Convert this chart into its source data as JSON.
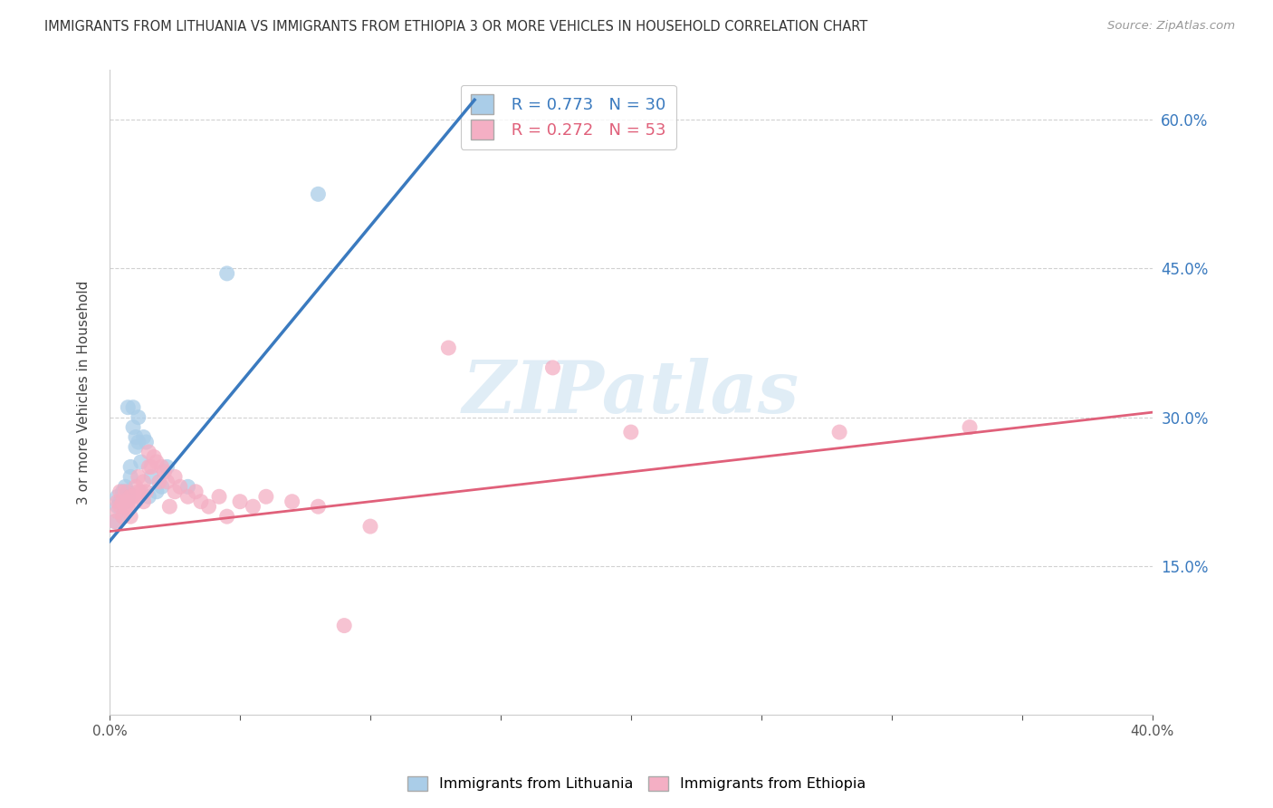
{
  "title": "IMMIGRANTS FROM LITHUANIA VS IMMIGRANTS FROM ETHIOPIA 3 OR MORE VEHICLES IN HOUSEHOLD CORRELATION CHART",
  "source": "Source: ZipAtlas.com",
  "ylabel": "3 or more Vehicles in Household",
  "xlim": [
    0.0,
    0.4
  ],
  "ylim": [
    0.0,
    0.65
  ],
  "xticks": [
    0.0,
    0.05,
    0.1,
    0.15,
    0.2,
    0.25,
    0.3,
    0.35,
    0.4
  ],
  "yticks_right": [
    0.15,
    0.3,
    0.45,
    0.6
  ],
  "ytick_labels_right": [
    "15.0%",
    "30.0%",
    "45.0%",
    "60.0%"
  ],
  "series1_label": "Immigrants from Lithuania",
  "series1_R": 0.773,
  "series1_N": 30,
  "series1_color": "#aacde8",
  "series1_line_color": "#3a7abf",
  "series2_label": "Immigrants from Ethiopia",
  "series2_R": 0.272,
  "series2_N": 53,
  "series2_color": "#f4afc4",
  "series2_line_color": "#e0607a",
  "watermark_text": "ZIPatlas",
  "background_color": "#ffffff",
  "grid_color": "#cccccc",
  "title_color": "#444444",
  "series1_x": [
    0.002,
    0.003,
    0.003,
    0.004,
    0.005,
    0.005,
    0.006,
    0.006,
    0.007,
    0.007,
    0.007,
    0.008,
    0.008,
    0.009,
    0.009,
    0.01,
    0.01,
    0.011,
    0.011,
    0.012,
    0.013,
    0.014,
    0.015,
    0.016,
    0.018,
    0.02,
    0.022,
    0.03,
    0.045,
    0.08
  ],
  "series1_y": [
    0.195,
    0.21,
    0.22,
    0.215,
    0.2,
    0.225,
    0.215,
    0.23,
    0.22,
    0.225,
    0.31,
    0.24,
    0.25,
    0.29,
    0.31,
    0.27,
    0.28,
    0.275,
    0.3,
    0.255,
    0.28,
    0.275,
    0.22,
    0.24,
    0.225,
    0.23,
    0.25,
    0.23,
    0.445,
    0.525
  ],
  "series2_x": [
    0.002,
    0.003,
    0.003,
    0.004,
    0.004,
    0.005,
    0.005,
    0.006,
    0.006,
    0.007,
    0.007,
    0.008,
    0.008,
    0.009,
    0.01,
    0.01,
    0.011,
    0.011,
    0.012,
    0.013,
    0.013,
    0.014,
    0.015,
    0.015,
    0.016,
    0.017,
    0.018,
    0.019,
    0.02,
    0.021,
    0.022,
    0.023,
    0.025,
    0.025,
    0.027,
    0.03,
    0.033,
    0.035,
    0.038,
    0.042,
    0.045,
    0.05,
    0.055,
    0.06,
    0.07,
    0.08,
    0.09,
    0.1,
    0.13,
    0.17,
    0.2,
    0.28,
    0.33
  ],
  "series2_y": [
    0.195,
    0.205,
    0.215,
    0.21,
    0.225,
    0.2,
    0.215,
    0.21,
    0.225,
    0.21,
    0.215,
    0.2,
    0.22,
    0.22,
    0.215,
    0.23,
    0.225,
    0.24,
    0.225,
    0.215,
    0.235,
    0.225,
    0.25,
    0.265,
    0.25,
    0.26,
    0.255,
    0.235,
    0.25,
    0.245,
    0.235,
    0.21,
    0.225,
    0.24,
    0.23,
    0.22,
    0.225,
    0.215,
    0.21,
    0.22,
    0.2,
    0.215,
    0.21,
    0.22,
    0.215,
    0.21,
    0.09,
    0.19,
    0.37,
    0.35,
    0.285,
    0.285,
    0.29
  ],
  "line1_x0": 0.0,
  "line1_y0": 0.175,
  "line1_x1": 0.14,
  "line1_y1": 0.62,
  "line2_x0": 0.0,
  "line2_y0": 0.185,
  "line2_x1": 0.4,
  "line2_y1": 0.305
}
